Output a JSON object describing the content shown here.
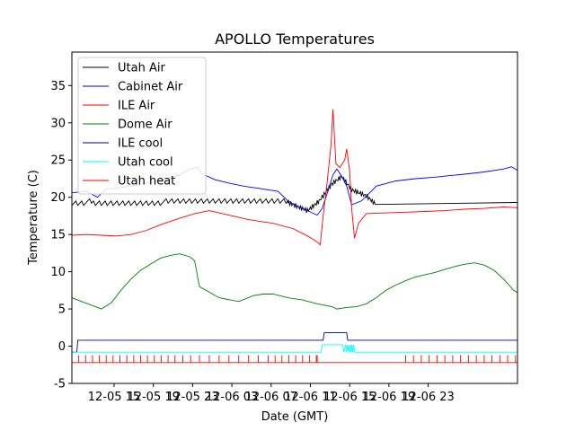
{
  "chart_data": {
    "type": "line",
    "title": "APOLLO Temperatures",
    "xlabel": "Date (GMT)",
    "ylabel": "Temperature (C)",
    "ylim": [
      -5,
      39.5
    ],
    "xlim_hours": [
      0,
      45.4
    ],
    "yticks": [
      -5,
      0,
      5,
      10,
      15,
      20,
      25,
      30,
      35
    ],
    "xtick_labels": [
      "12-05 15",
      "12-05 19",
      "12-05 23",
      "12-06 03",
      "12-06 07",
      "12-06 11",
      "12-06 15",
      "12-06 19",
      "12-06 23"
    ],
    "xtick_hours": [
      4.3,
      8.3,
      12.3,
      16.3,
      20.3,
      24.3,
      28.3,
      32.3,
      36.3
    ],
    "legend_position": "top-left",
    "series": [
      {
        "name": "Utah Air",
        "color": "#000000",
        "style": "sawtooth",
        "x": [
          0,
          22.0,
          24.0,
          25.2,
          26.5,
          27.5,
          28.5,
          30.0,
          31.0,
          34.0,
          40.0,
          45.4
        ],
        "y": [
          19.3,
          19.3,
          18.2,
          19.5,
          21.8,
          22.8,
          21.0,
          20.2,
          19.0,
          19.3,
          19.3,
          19.3
        ]
      },
      {
        "name": "Cabinet Air",
        "color": "#0000ff",
        "x": [
          0,
          1.5,
          2.6,
          3.5,
          5.0,
          6.5,
          8.0,
          9.5,
          11.0,
          12.0,
          12.8,
          13.2,
          14.5,
          16.0,
          17.5,
          19.0,
          20.0,
          21.0,
          22.0,
          23.0,
          24.0,
          25.0,
          25.5,
          26.0,
          26.6,
          27.0,
          27.5,
          28.0,
          28.5,
          29.5,
          30.5,
          31.0,
          33.0,
          35.0,
          37.0,
          38.5,
          40.0,
          42.0,
          44.0,
          44.8,
          45.4
        ],
        "y": [
          20.6,
          20.8,
          20.0,
          21.1,
          21.3,
          21.6,
          22.0,
          22.5,
          23.0,
          23.8,
          24.0,
          23.2,
          22.4,
          21.9,
          21.5,
          21.2,
          21.0,
          20.8,
          19.5,
          18.8,
          18.2,
          17.6,
          18.5,
          20.5,
          23.0,
          23.8,
          22.8,
          21.5,
          19.0,
          19.5,
          20.8,
          21.5,
          22.2,
          22.5,
          22.7,
          22.9,
          23.1,
          23.4,
          23.8,
          24.1,
          23.6
        ]
      },
      {
        "name": "ILE Air",
        "color": "#ff0000",
        "x": [
          0,
          1.5,
          3.0,
          4.5,
          6.0,
          7.5,
          9.0,
          11.0,
          12.5,
          14.0,
          16.0,
          18.0,
          19.5,
          20.5,
          22.5,
          24.0,
          25.0,
          25.3,
          25.6,
          26.0,
          26.4,
          26.6,
          26.9,
          27.3,
          27.8,
          28.0,
          28.3,
          28.5,
          28.8,
          29.2,
          30.0,
          32.0,
          34.0,
          36.0,
          38.0,
          40.0,
          42.0,
          44.0,
          45.4
        ],
        "y": [
          14.9,
          15.0,
          14.9,
          14.8,
          15.0,
          15.5,
          16.3,
          17.2,
          17.8,
          18.2,
          17.6,
          17.0,
          16.7,
          16.5,
          15.8,
          14.8,
          14.0,
          13.6,
          17.5,
          22.0,
          27.0,
          31.8,
          24.5,
          24.0,
          25.0,
          26.5,
          23.5,
          18.5,
          14.5,
          16.5,
          17.8,
          17.9,
          18.0,
          18.1,
          18.2,
          18.4,
          18.5,
          18.7,
          18.6
        ]
      },
      {
        "name": "Dome Air",
        "color": "#008000",
        "x": [
          0,
          1.0,
          2.0,
          3.0,
          4.0,
          5.0,
          6.0,
          7.0,
          8.0,
          9.0,
          10.0,
          11.0,
          12.0,
          12.5,
          13.0,
          15.0,
          17.0,
          18.5,
          19.5,
          20.5,
          22.0,
          23.5,
          25.0,
          26.5,
          27.0,
          28.0,
          29.0,
          30.0,
          31.0,
          32.0,
          33.0,
          34.0,
          35.0,
          36.0,
          37.0,
          38.0,
          39.0,
          40.0,
          41.0,
          42.0,
          43.0,
          44.0,
          45.0,
          45.4
        ],
        "y": [
          6.5,
          6.0,
          5.5,
          5.0,
          5.8,
          7.5,
          9.0,
          10.2,
          11.0,
          11.8,
          12.2,
          12.4,
          12.0,
          11.5,
          8.0,
          6.5,
          6.0,
          6.8,
          7.0,
          7.0,
          6.5,
          6.2,
          5.7,
          5.3,
          5.0,
          5.2,
          5.3,
          5.7,
          6.5,
          7.5,
          8.2,
          8.8,
          9.3,
          9.6,
          9.9,
          10.3,
          10.7,
          11.0,
          11.2,
          10.9,
          10.2,
          9.0,
          7.5,
          7.2
        ]
      },
      {
        "name": "ILE cool",
        "color": "#00008b",
        "x": [
          0,
          0.5,
          0.6,
          25.6,
          25.7,
          28.0,
          28.1,
          45.4
        ],
        "y": [
          -0.8,
          -0.8,
          0.8,
          0.8,
          1.8,
          1.8,
          0.8,
          0.8
        ]
      },
      {
        "name": "Utah cool",
        "color": "#00ffff",
        "x": [
          0,
          25.4,
          25.5,
          27.6,
          27.7,
          27.9,
          28.0,
          28.1,
          28.2,
          28.3,
          28.4,
          28.5,
          28.6,
          28.7,
          28.8,
          45.4
        ],
        "y": [
          -0.8,
          -0.8,
          0.2,
          0.2,
          -0.8,
          0.2,
          -0.8,
          0.2,
          -0.8,
          0.2,
          -0.8,
          0.2,
          -0.8,
          0.2,
          -0.8,
          -0.8
        ]
      },
      {
        "name": "Utah heat",
        "color": "#ff0000",
        "style": "pulses",
        "baseline": -2.2,
        "pulse_top": -1.2,
        "pulse_hours": [
          0.0,
          0.7,
          1.4,
          2.1,
          2.8,
          3.5,
          4.2,
          4.9,
          5.6,
          6.3,
          7.0,
          7.7,
          8.4,
          9.1,
          9.8,
          10.5,
          11.3,
          12.1,
          13.0,
          14.0,
          15.0,
          16.0,
          17.0,
          18.0,
          19.0,
          20.0,
          20.7,
          21.4,
          22.1,
          22.8,
          23.5,
          24.2,
          24.9,
          25.0,
          34.0,
          34.8,
          35.6,
          36.4,
          37.2,
          38.0,
          38.8,
          39.6,
          40.4,
          41.2,
          42.0,
          42.8,
          43.6,
          44.4,
          45.2
        ]
      }
    ]
  }
}
